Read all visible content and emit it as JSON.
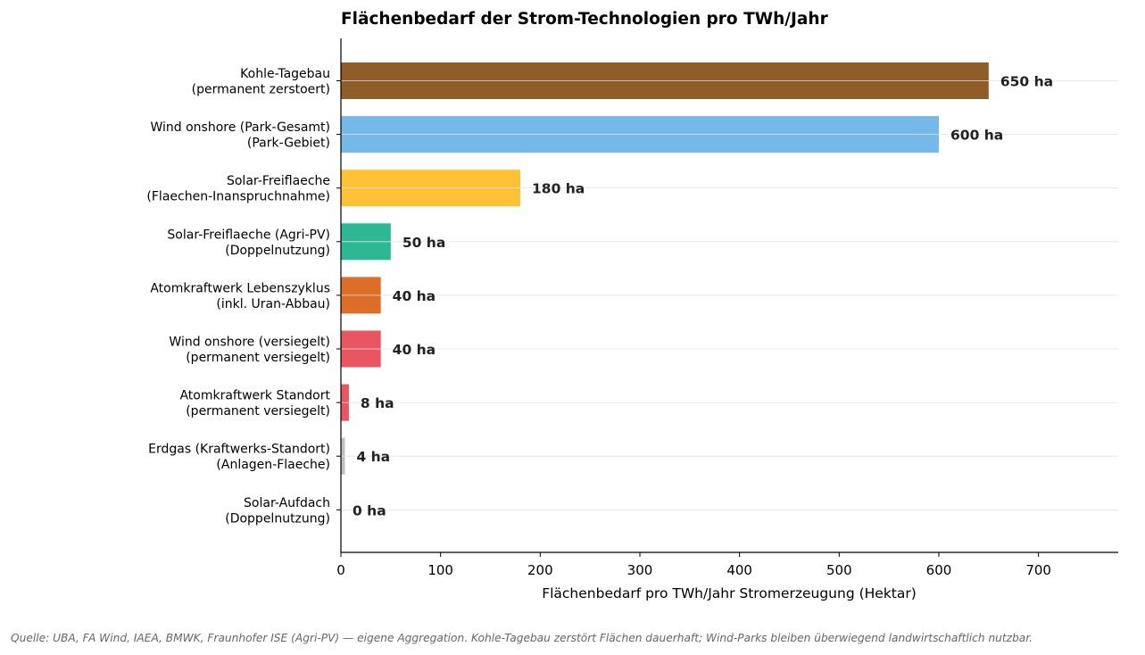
{
  "chart_data": {
    "type": "bar",
    "orientation": "horizontal",
    "title": "Flächenbedarf der Strom-Technologien pro TWh/Jahr",
    "xlabel": "Flächenbedarf pro TWh/Jahr Stromerzeugung (Hektar)",
    "ylabel": "",
    "xlim": [
      0,
      780
    ],
    "xticks": [
      0,
      100,
      200,
      300,
      400,
      500,
      600,
      700
    ],
    "grid": "x-major",
    "unit_suffix": " ha",
    "categories": [
      [
        "Kohle-Tagebau",
        "(permanent zerstoert)"
      ],
      [
        "Wind onshore (Park-Gesamt)",
        "(Park-Gebiet)"
      ],
      [
        "Solar-Freiflaeche",
        "(Flaechen-Inanspruchnahme)"
      ],
      [
        "Solar-Freiflaeche (Agri-PV)",
        "(Doppelnutzung)"
      ],
      [
        "Atomkraftwerk Lebenszyklus",
        "(inkl. Uran-Abbau)"
      ],
      [
        "Wind onshore (versiegelt)",
        "(permanent versiegelt)"
      ],
      [
        "Atomkraftwerk Standort",
        "(permanent versiegelt)"
      ],
      [
        "Erdgas (Kraftwerks-Standort)",
        "(Anlagen-Flaeche)"
      ],
      [
        "Solar-Aufdach",
        "(Doppelnutzung)"
      ]
    ],
    "values": [
      650,
      600,
      180,
      50,
      40,
      40,
      8,
      4,
      0
    ],
    "value_labels": [
      "650 ha",
      "600 ha",
      "180 ha",
      "50 ha",
      "40 ha",
      "40 ha",
      "8 ha",
      "4 ha",
      "0 ha"
    ],
    "colors": [
      "#8f5e28",
      "#74b9e7",
      "#fec234",
      "#2bb892",
      "#dc6e28",
      "#e85661",
      "#e85661",
      "#bfbfbf",
      "#bfbfbf"
    ]
  },
  "source_note": "Quelle: UBA, FA Wind, IAEA, BMWK, Fraunhofer ISE (Agri-PV) — eigene Aggregation. Kohle-Tagebau zerstört Flächen dauerhaft; Wind-Parks bleiben überwiegend landwirtschaftlich nutzbar."
}
